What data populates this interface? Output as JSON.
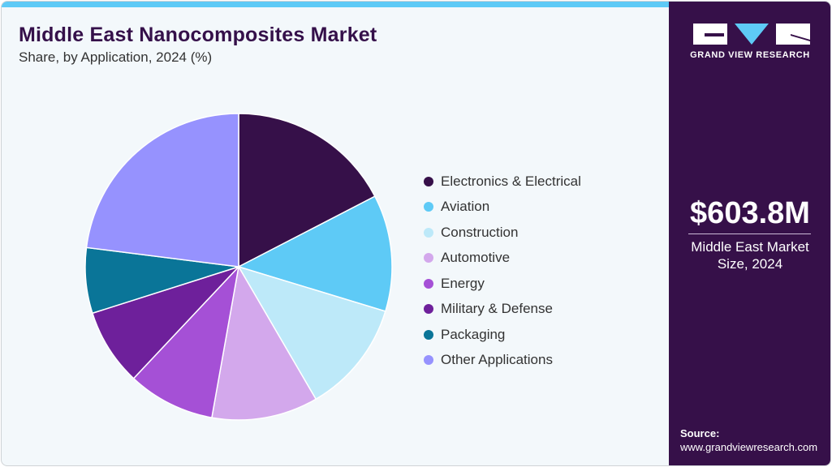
{
  "header": {
    "title": "Middle East Nanocomposites Market",
    "subtitle": "Share, by Application, 2024 (%)"
  },
  "brand": {
    "name": "GRAND VIEW RESEARCH",
    "accent": "#5ecaf6",
    "panel_color": "#361049"
  },
  "market": {
    "value": "$603.8M",
    "label_line1": "Middle East Market",
    "label_line2": "Size, 2024"
  },
  "source": {
    "label": "Source:",
    "url": "www.grandviewresearch.com"
  },
  "legend": [
    {
      "label": "Electronics & Electrical",
      "color": "#361049"
    },
    {
      "label": "Aviation",
      "color": "#5ecaf6"
    },
    {
      "label": "Construction",
      "color": "#bde9f9"
    },
    {
      "label": "Automotive",
      "color": "#d3a8ec"
    },
    {
      "label": "Energy",
      "color": "#a550d6"
    },
    {
      "label": "Military & Defense",
      "color": "#6e209b"
    },
    {
      "label": "Packaging",
      "color": "#0a7598"
    },
    {
      "label": "Other Applications",
      "color": "#9692fe"
    }
  ],
  "chart_data": {
    "type": "pie",
    "title": "Middle East Nanocomposites Market",
    "subtitle": "Share, by Application, 2024 (%)",
    "categories": [
      "Electronics & Electrical",
      "Aviation",
      "Construction",
      "Automotive",
      "Energy",
      "Military & Defense",
      "Packaging",
      "Other Applications"
    ],
    "values": [
      17.4,
      12.3,
      11.9,
      11.2,
      9.2,
      8.1,
      6.9,
      23.0
    ],
    "colors": [
      "#361049",
      "#5ecaf6",
      "#bde9f9",
      "#d3a8ec",
      "#a550d6",
      "#6e209b",
      "#0a7598",
      "#9692fe"
    ],
    "start_angle": "12 o'clock, clockwise",
    "legend_position": "right",
    "data_labels": false
  }
}
